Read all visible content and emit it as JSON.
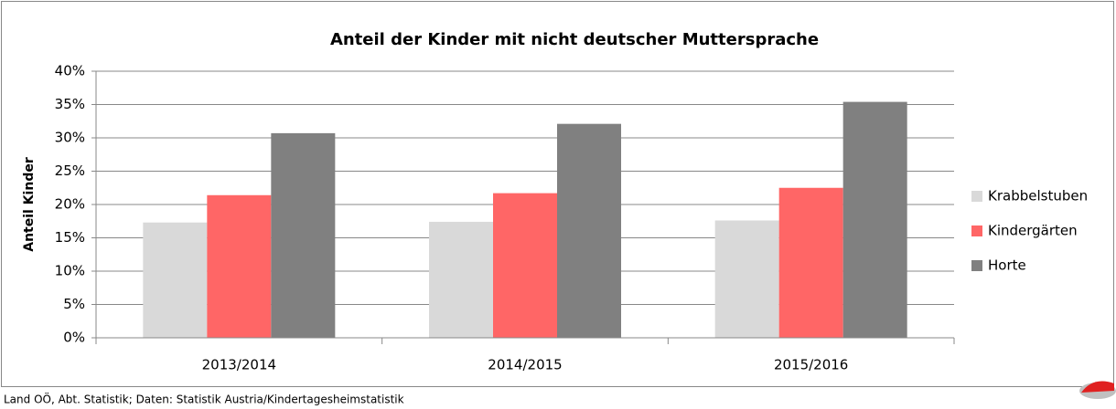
{
  "chart_data": {
    "type": "bar",
    "title": "Anteil der Kinder mit nicht deutscher Muttersprache",
    "y_label": "Anteil Kinder",
    "categories": [
      "2013/2014",
      "2014/2015",
      "2015/2016"
    ],
    "series": [
      {
        "name": "Krabbelstuben",
        "color": "#d9d9d9",
        "values": [
          17.3,
          17.4,
          17.6
        ]
      },
      {
        "name": "Kindergärten",
        "color": "#ff6666",
        "values": [
          21.4,
          21.7,
          22.5
        ]
      },
      {
        "name": "Horte",
        "color": "#808080",
        "values": [
          30.7,
          32.1,
          35.4
        ]
      }
    ],
    "ylim": [
      0,
      40
    ],
    "yticks": [
      {
        "value": 0,
        "label": "0%"
      },
      {
        "value": 5,
        "label": "5%"
      },
      {
        "value": 10,
        "label": "10%"
      },
      {
        "value": 15,
        "label": "15%"
      },
      {
        "value": 20,
        "label": "20%"
      },
      {
        "value": 25,
        "label": "25%"
      },
      {
        "value": 30,
        "label": "30%"
      },
      {
        "value": 35,
        "label": "35%"
      },
      {
        "value": 40,
        "label": "40%"
      }
    ],
    "grid": true,
    "legend": "right",
    "source": "Land OÖ, Abt. Statistik; Daten: Statistik  Austria/Kindertagesheimstatistik"
  }
}
